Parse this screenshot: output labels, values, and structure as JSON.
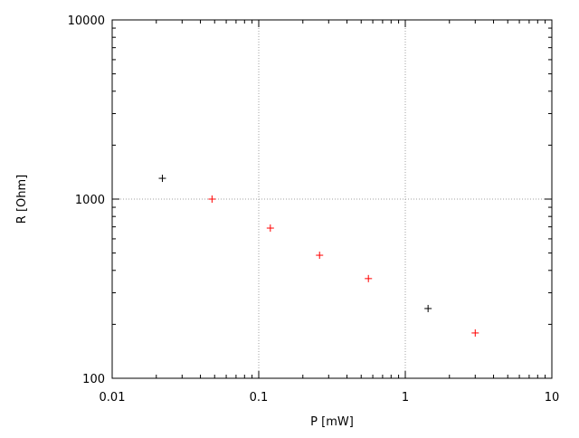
{
  "chart_data": {
    "type": "scatter",
    "title": "",
    "xlabel": "P [mW]",
    "ylabel": "R [Ohm]",
    "xscale": "log",
    "yscale": "log",
    "xlim": [
      0.01,
      10
    ],
    "ylim": [
      100,
      10000
    ],
    "xticks": [
      "0.01",
      "0.1",
      "1",
      "10"
    ],
    "xtick_values": [
      0.01,
      0.1,
      1,
      10
    ],
    "yticks": [
      "100",
      "1000",
      "10000"
    ],
    "ytick_values": [
      100,
      1000,
      10000
    ],
    "grid": true,
    "series": [
      {
        "color": "#000000",
        "marker": "+",
        "x": [
          0.022,
          1.43
        ],
        "y": [
          1306,
          245
        ]
      },
      {
        "color": "#ff0000",
        "marker": "+",
        "x": [
          0.048,
          0.12,
          0.26,
          0.56,
          3.0
        ],
        "y": [
          1000,
          689,
          486,
          360,
          179
        ]
      }
    ]
  }
}
